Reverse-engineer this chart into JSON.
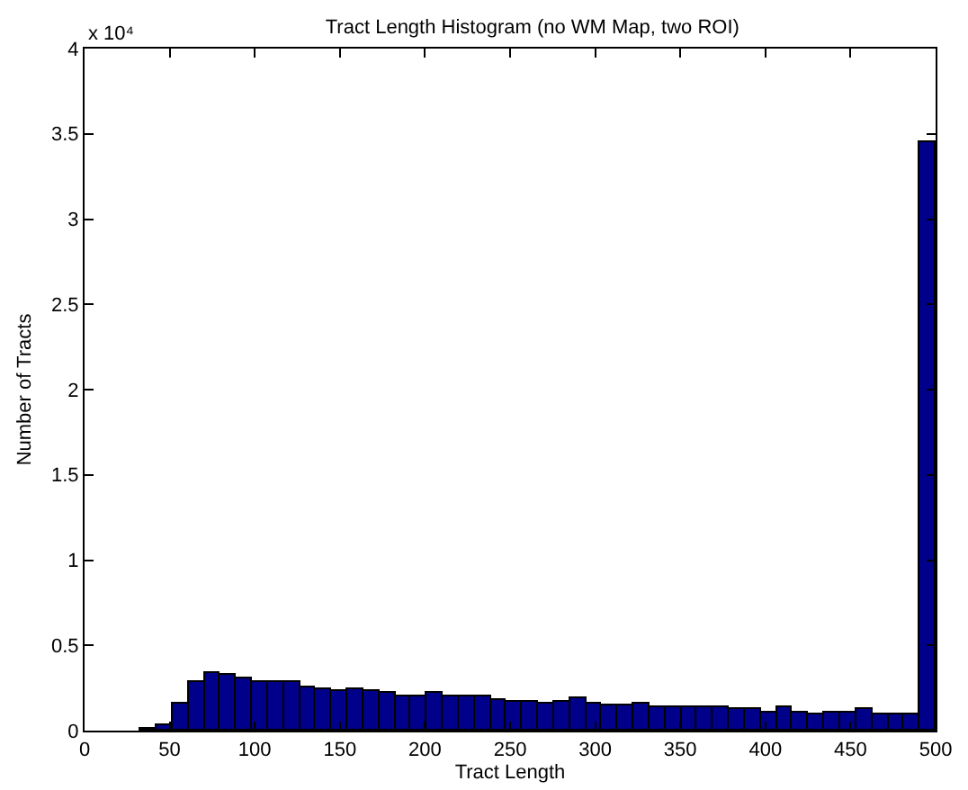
{
  "chart_data": {
    "type": "histogram",
    "title": "Tract Length Histogram (no WM Map, two ROI)",
    "xlabel": "Tract Length",
    "ylabel": "Number of Tracts",
    "annotations": [
      "x 10⁴"
    ],
    "bins": [
      33,
      42.3,
      51.7,
      61,
      70.4,
      79.7,
      89,
      98.4,
      107.7,
      117.1,
      126.4,
      135.7,
      145.1,
      154.4,
      163.8,
      173.1,
      182.4,
      191.8,
      201.1,
      210.5,
      219.8,
      229.1,
      238.5,
      247.8,
      257.2,
      266.5,
      275.8,
      285.2,
      294.5,
      303.9,
      313.2,
      322.5,
      331.9,
      341.2,
      350.6,
      359.9,
      369.2,
      378.6,
      387.9,
      397.3,
      406.6,
      415.9,
      425.3,
      434.6,
      444,
      453.3,
      462.6,
      472,
      481.3,
      490.7,
      500
    ],
    "values": [
      0.01,
      0.03,
      0.16,
      0.28,
      0.34,
      0.33,
      0.31,
      0.29,
      0.28,
      0.29,
      0.25,
      0.24,
      0.23,
      0.24,
      0.23,
      0.22,
      0.2,
      0.2,
      0.22,
      0.2,
      0.2,
      0.2,
      0.18,
      0.17,
      0.17,
      0.16,
      0.17,
      0.19,
      0.16,
      0.15,
      0.15,
      0.16,
      0.14,
      0.14,
      0.14,
      0.14,
      0.14,
      0.13,
      0.13,
      0.11,
      0.14,
      0.11,
      0.1,
      0.11,
      0.11,
      0.13,
      0.1,
      0.1,
      0.1,
      3.45
    ],
    "color": "#00008b",
    "grid": false,
    "xlim": [
      0,
      500
    ],
    "xticks": [
      0,
      50,
      100,
      150,
      200,
      250,
      300,
      350,
      400,
      450,
      500
    ],
    "ylim": [
      0,
      4
    ],
    "yticks": [
      0,
      0.5,
      1,
      1.5,
      2,
      2.5,
      3,
      3.5,
      4
    ]
  }
}
